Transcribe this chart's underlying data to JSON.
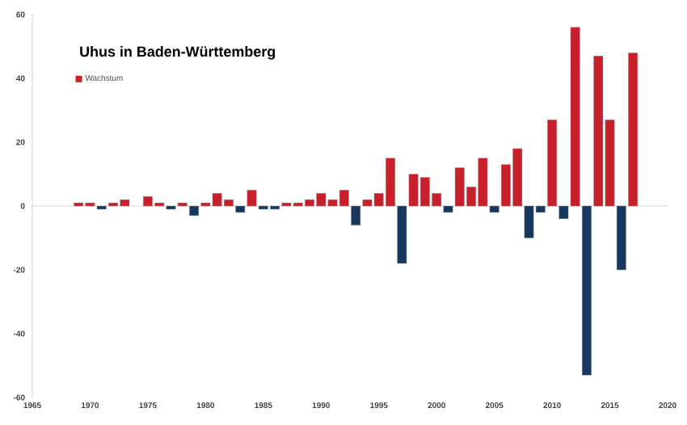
{
  "chart_data": {
    "type": "bar",
    "title": "Uhus in Baden-Württemberg",
    "x": [
      1969,
      1970,
      1971,
      1972,
      1973,
      1974,
      1975,
      1976,
      1977,
      1978,
      1979,
      1980,
      1981,
      1982,
      1983,
      1984,
      1985,
      1986,
      1987,
      1988,
      1989,
      1990,
      1991,
      1992,
      1993,
      1994,
      1995,
      1996,
      1997,
      1998,
      1999,
      2000,
      2001,
      2002,
      2003,
      2004,
      2005,
      2006,
      2007,
      2008,
      2009,
      2010,
      2011,
      2012,
      2013,
      2014,
      2015,
      2016,
      2017
    ],
    "series": [
      {
        "name": "Wachstum",
        "color": "#c8202a",
        "values": [
          1,
          1,
          -1,
          1,
          2,
          null,
          3,
          1,
          -1,
          1,
          -3,
          1,
          4,
          2,
          -2,
          5,
          -1,
          -1,
          1,
          1,
          2,
          4,
          2,
          5,
          -6,
          2,
          4,
          15,
          -18,
          10,
          9,
          4,
          -2,
          12,
          6,
          15,
          -2,
          13,
          18,
          -10,
          -2,
          27,
          -4,
          56,
          -53,
          47,
          27,
          -20,
          48
        ],
        "colors": [
          "#c8202a",
          "#c8202a",
          "#17375e",
          "#c8202a",
          "#c8202a",
          "#c8202a",
          "#c8202a",
          "#c8202a",
          "#17375e",
          "#c8202a",
          "#17375e",
          "#c8202a",
          "#c8202a",
          "#c8202a",
          "#17375e",
          "#c8202a",
          "#17375e",
          "#17375e",
          "#c8202a",
          "#c8202a",
          "#c8202a",
          "#c8202a",
          "#c8202a",
          "#c8202a",
          "#17375e",
          "#c8202a",
          "#c8202a",
          "#c8202a",
          "#17375e",
          "#c8202a",
          "#c8202a",
          "#c8202a",
          "#17375e",
          "#c8202a",
          "#c8202a",
          "#c8202a",
          "#17375e",
          "#c8202a",
          "#c8202a",
          "#17375e",
          "#17375e",
          "#c8202a",
          "#17375e",
          "#c8202a",
          "#17375e",
          "#c8202a",
          "#c8202a",
          "#17375e",
          "#c8202a"
        ]
      }
    ],
    "xlim": [
      1965,
      2020
    ],
    "xticks": [
      1965,
      1970,
      1975,
      1980,
      1985,
      1990,
      1995,
      2000,
      2005,
      2010,
      2015,
      2020
    ],
    "ylim": [
      -60,
      60
    ],
    "yticks": [
      -60,
      -40,
      -20,
      0,
      20,
      40,
      60
    ],
    "legend": "top left"
  }
}
